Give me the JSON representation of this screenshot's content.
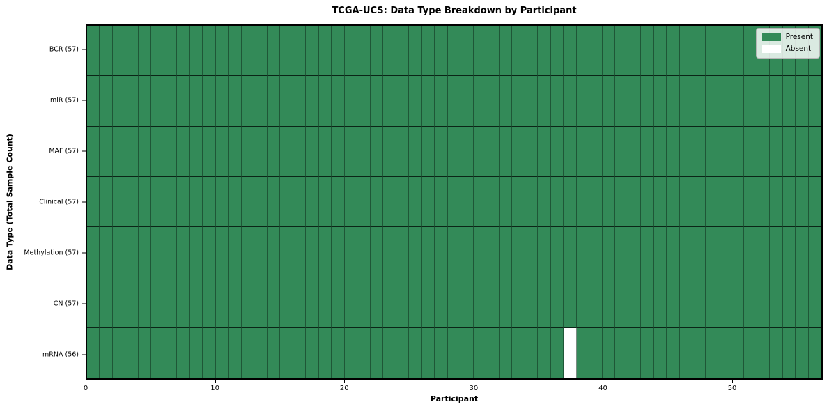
{
  "title": "TCGA-UCS: Data Type Breakdown by Participant",
  "xlabel": "Participant",
  "ylabel": "Data Type (Total Sample Count)",
  "legend": {
    "position": "upper right",
    "entries": [
      {
        "label": "Present",
        "color": "#338a58"
      },
      {
        "label": "Absent",
        "color": "#ffffff"
      }
    ]
  },
  "chart_data": {
    "type": "heatmap",
    "title": "TCGA-UCS: Data Type Breakdown by Participant",
    "xlabel": "Participant",
    "ylabel": "Data Type (Total Sample Count)",
    "x_range": [
      0,
      57
    ],
    "n_participants": 57,
    "x_ticks": [
      0,
      10,
      20,
      30,
      40,
      50
    ],
    "grid": true,
    "colors": {
      "present": "#338a58",
      "absent": "#ffffff"
    },
    "value_legend": {
      "1": "Present",
      "0": "Absent"
    },
    "rows": [
      {
        "label": "BCR (57)",
        "present_count": 57,
        "absent_participants": []
      },
      {
        "label": "miR (57)",
        "present_count": 57,
        "absent_participants": []
      },
      {
        "label": "MAF (57)",
        "present_count": 57,
        "absent_participants": []
      },
      {
        "label": "Clinical (57)",
        "present_count": 57,
        "absent_participants": []
      },
      {
        "label": "Methylation (57)",
        "present_count": 57,
        "absent_participants": []
      },
      {
        "label": "CN (57)",
        "present_count": 57,
        "absent_participants": []
      },
      {
        "label": "mRNA (56)",
        "present_count": 56,
        "absent_participants": [
          37
        ]
      }
    ]
  }
}
